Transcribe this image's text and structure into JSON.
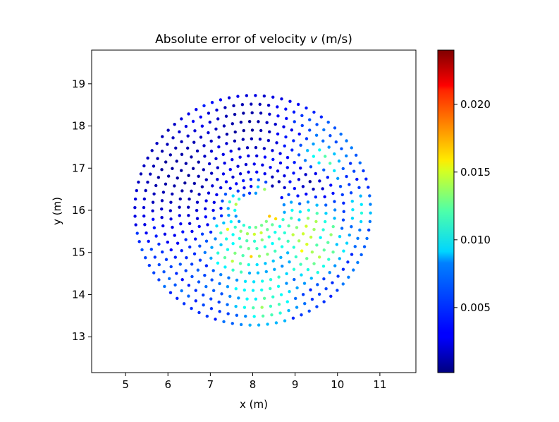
{
  "chart_data": {
    "type": "scatter",
    "title_prefix": "Absolute error of velocity ",
    "title_var": "v",
    "title_suffix": " (m/s)",
    "xlabel": "x (m)",
    "ylabel": "y (m)",
    "xlim": [
      4.2,
      11.85
    ],
    "ylim": [
      12.15,
      19.8
    ],
    "xticks": [
      5,
      6,
      7,
      8,
      9,
      10,
      11
    ],
    "yticks": [
      13,
      14,
      15,
      16,
      17,
      18,
      19
    ],
    "grid": false,
    "legend": "none",
    "colormap": "jet",
    "colorbar": {
      "min": 0.0002,
      "max": 0.024,
      "ticks": [
        0.005,
        0.01,
        0.015,
        0.02
      ],
      "tick_labels": [
        "0.005",
        "0.010",
        "0.015",
        "0.020"
      ]
    },
    "domain": {
      "center": [
        8.0,
        16.0
      ],
      "outer_radius": 2.9,
      "body": {
        "shape": "triangle",
        "vertices": [
          [
            7.75,
            16.3
          ],
          [
            8.75,
            16.55
          ],
          [
            8.55,
            15.85
          ]
        ]
      }
    },
    "point_rings": [
      {
        "r": 0.42,
        "count": 18
      },
      {
        "r": 0.58,
        "count": 22
      },
      {
        "r": 0.75,
        "count": 26
      },
      {
        "r": 0.93,
        "count": 30
      },
      {
        "r": 1.12,
        "count": 36
      },
      {
        "r": 1.32,
        "count": 42
      },
      {
        "r": 1.52,
        "count": 48
      },
      {
        "r": 1.73,
        "count": 54
      },
      {
        "r": 1.94,
        "count": 60
      },
      {
        "r": 2.15,
        "count": 66
      },
      {
        "r": 2.36,
        "count": 72
      },
      {
        "r": 2.57,
        "count": 78
      },
      {
        "r": 2.78,
        "count": 84
      }
    ],
    "error_field": {
      "base_min": 0.0003,
      "hotspots": [
        {
          "x": 7.55,
          "y": 16.2,
          "value": 0.022,
          "spread": 0.18
        },
        {
          "x": 8.3,
          "y": 16.5,
          "value": 0.021,
          "spread": 0.16
        },
        {
          "x": 7.35,
          "y": 15.5,
          "value": 0.019,
          "spread": 0.2
        },
        {
          "x": 8.5,
          "y": 15.8,
          "value": 0.016,
          "spread": 0.2
        },
        {
          "x": 7.8,
          "y": 15.2,
          "value": 0.013,
          "spread": 0.7
        },
        {
          "x": 9.3,
          "y": 15.3,
          "value": 0.011,
          "spread": 0.8
        },
        {
          "x": 8.2,
          "y": 14.0,
          "value": 0.01,
          "spread": 0.7
        },
        {
          "x": 9.7,
          "y": 17.2,
          "value": 0.009,
          "spread": 0.5
        },
        {
          "x": 10.6,
          "y": 16.0,
          "value": 0.007,
          "spread": 0.5
        }
      ],
      "cold_regions": [
        {
          "x": 6.2,
          "y": 17.0,
          "spread": 1.2
        },
        {
          "x": 7.8,
          "y": 18.0,
          "spread": 0.8
        },
        {
          "x": 8.5,
          "y": 16.6,
          "spread": 0.25
        },
        {
          "x": 9.4,
          "y": 16.7,
          "spread": 0.3
        }
      ]
    }
  }
}
